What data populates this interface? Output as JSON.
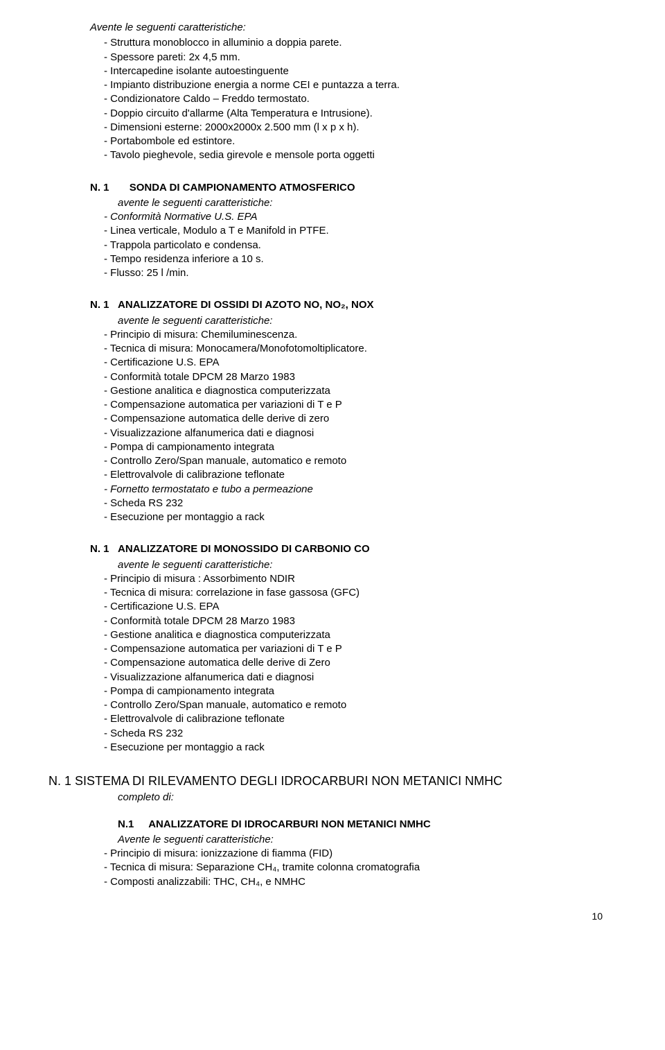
{
  "section1": {
    "title": "Avente le seguenti caratteristiche:",
    "items": [
      "Struttura monoblocco in alluminio a doppia parete.",
      "Spessore pareti: 2x 4,5 mm.",
      "Intercapedine isolante  autoestinguente",
      "Impianto distribuzione energia a norme CEI  e puntazza a terra.",
      "Condizionatore Caldo – Freddo termostato.",
      "Doppio circuito d'allarme (Alta Temperatura e Intrusione).",
      "Dimensioni esterne: 2000x2000x 2.500 mm (l x p x h).",
      "Portabombole ed estintore.",
      "Tavolo pieghevole, sedia girevole e mensole porta oggetti"
    ]
  },
  "section2": {
    "prefix": "N. 1",
    "title": "SONDA DI CAMPIONAMENTO ATMOSFERICO",
    "subtitle": "avente le seguenti caratteristiche:",
    "items": [
      {
        "text": "Conformità Normative U.S. EPA",
        "italic": true
      },
      {
        "text": "Linea verticale, Modulo a T e Manifold in PTFE.",
        "italic": false
      },
      {
        "text": "Trappola particolato e condensa.",
        "italic": false
      },
      {
        "text": "Tempo residenza inferiore a 10 s.",
        "italic": false
      },
      {
        "text": "Flusso: 25 l /min.",
        "italic": false
      }
    ]
  },
  "section3": {
    "prefix": "N. 1",
    "title": "ANALIZZATORE DI OSSIDI DI AZOTO NO, NO₂, NOX",
    "subtitle": "avente le seguenti caratteristiche:",
    "items": [
      {
        "text": "Principio di misura: Chemiluminescenza.",
        "italic": false
      },
      {
        "text": "Tecnica di misura:  Monocamera/Monofotomoltiplicatore.",
        "italic": false
      },
      {
        "text": "Certificazione U.S. EPA",
        "italic": false
      },
      {
        "text": "Conformità totale DPCM 28 Marzo 1983",
        "italic": false
      },
      {
        "text": "Gestione analitica e diagnostica computerizzata",
        "italic": false
      },
      {
        "text": "Compensazione automatica per variazioni di T e P",
        "italic": false
      },
      {
        "text": "Compensazione automatica delle derive di zero",
        "italic": false
      },
      {
        "text": "Visualizzazione alfanumerica dati e diagnosi",
        "italic": false
      },
      {
        "text": "Pompa di campionamento integrata",
        "italic": false
      },
      {
        "text": "Controllo Zero/Span manuale, automatico e remoto",
        "italic": false
      },
      {
        "text": "Elettrovalvole di calibrazione teflonate",
        "italic": false
      },
      {
        "text": "Fornetto termostatato e tubo a permeazione",
        "italic": true
      },
      {
        "text": "Scheda  RS 232",
        "italic": false
      },
      {
        "text": "Esecuzione per montaggio a rack",
        "italic": false
      }
    ]
  },
  "section4": {
    "prefix": "N. 1",
    "title": "ANALIZZATORE DI MONOSSIDO DI CARBONIO CO",
    "subtitle": "avente le seguenti caratteristiche:",
    "items": [
      {
        "text": "Principio di misura : Assorbimento NDIR",
        "italic": false
      },
      {
        "text": "Tecnica di misura: correlazione in fase gassosa (GFC)",
        "italic": false
      },
      {
        "text": "Certificazione U.S. EPA",
        "italic": false
      },
      {
        "text": "Conformità totale DPCM 28 Marzo 1983",
        "italic": false
      },
      {
        "text": "Gestione analitica e diagnostica computerizzata",
        "italic": false
      },
      {
        "text": "Compensazione automatica per variazioni di T e P",
        "italic": false
      },
      {
        "text": "Compensazione automatica delle derive di Zero",
        "italic": false
      },
      {
        "text": "Visualizzazione alfanumerica dati e diagnosi",
        "italic": false
      },
      {
        "text": "Pompa di campionamento integrata",
        "italic": false
      },
      {
        "text": "Controllo Zero/Span manuale, automatico e remoto",
        "italic": false
      },
      {
        "text": "Elettrovalvole di calibrazione teflonate",
        "italic": false
      },
      {
        "text": "Scheda RS 232",
        "italic": false
      },
      {
        "text": "Esecuzione per montaggio a rack",
        "italic": false
      }
    ]
  },
  "section5": {
    "title": "N. 1 SISTEMA DI RILEVAMENTO DEGLI IDROCARBURI NON METANICI  NMHC",
    "subtitle": "completo di:"
  },
  "section6": {
    "prefix": "N.1",
    "title": "ANALIZZATORE DI IDROCARBURI NON METANICI NMHC",
    "subtitle": "Avente le seguenti caratteristiche:",
    "items": [
      {
        "text": "Principio di misura: ionizzazione di fiamma (FID)",
        "italic": false
      },
      {
        "text": "Tecnica di misura: Separazione CH₄, tramite colonna cromatografia",
        "italic": false
      },
      {
        "text": "Composti analizzabili: THC, CH₄, e NMHC",
        "italic": false
      }
    ]
  },
  "pageNumber": "10"
}
